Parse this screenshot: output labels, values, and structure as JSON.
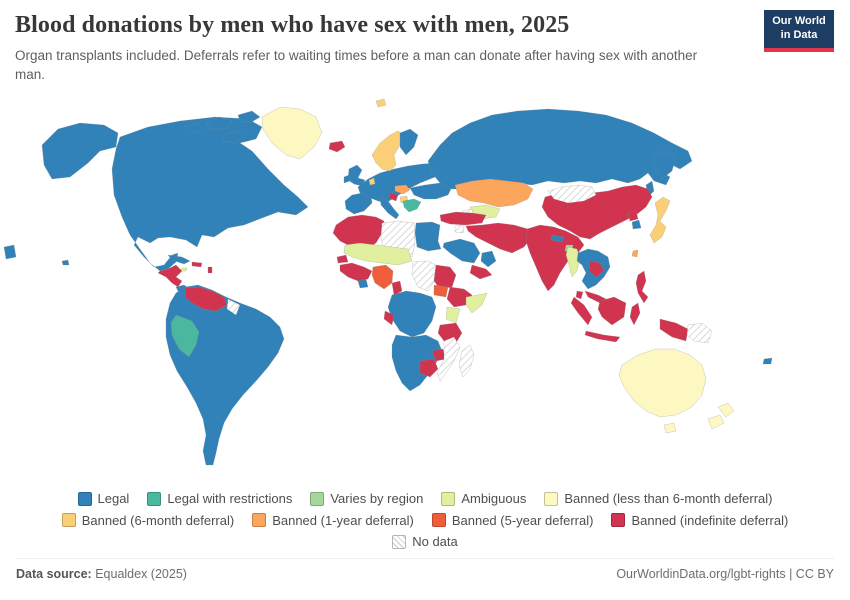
{
  "header": {
    "title": "Blood donations by men who have sex with men, 2025",
    "subtitle": "Organ transplants included. Deferrals refer to waiting times before a man can donate after having sex with another man."
  },
  "logo": {
    "line1": "Our World",
    "line2": "in Data",
    "bg_color": "#1d3d63",
    "accent_color": "#e0354d"
  },
  "chart_data": {
    "type": "choropleth-map",
    "title": "Blood donations by men who have sex with men, 2025",
    "legend_position": "bottom-center",
    "categories": [
      {
        "id": "legal",
        "label": "Legal",
        "color": "#3182b8",
        "row": 1
      },
      {
        "id": "legal-restrictions",
        "label": "Legal with restrictions",
        "color": "#4ab79f",
        "row": 1
      },
      {
        "id": "varies",
        "label": "Varies by region",
        "color": "#a4d89b",
        "row": 1
      },
      {
        "id": "ambiguous",
        "label": "Ambiguous",
        "color": "#e0f09e",
        "row": 1
      },
      {
        "id": "banned-lt6",
        "label": "Banned (less than 6-month deferral)",
        "color": "#fdf8c2",
        "row": 1
      },
      {
        "id": "banned-6mo",
        "label": "Banned (6-month deferral)",
        "color": "#fbcf78",
        "row": 2
      },
      {
        "id": "banned-1yr",
        "label": "Banned (1-year deferral)",
        "color": "#fba55d",
        "row": 2
      },
      {
        "id": "banned-5yr",
        "label": "Banned (5-year deferral)",
        "color": "#ef5e3a",
        "row": 2
      },
      {
        "id": "banned-indef",
        "label": "Banned (indefinite deferral)",
        "color": "#d0344f",
        "row": 2
      },
      {
        "id": "no-data",
        "label": "No data",
        "color": "#ffffff",
        "row": 3,
        "pattern": "hatch"
      }
    ],
    "regions": {
      "alaska": "legal",
      "north-america": "legal",
      "arctic-island-1": "legal",
      "arctic-island-2": "legal",
      "arctic-island-3": "legal",
      "arctic-island-4": "legal",
      "greenland": "banned-lt6",
      "iceland": "banned-indef",
      "cuba": "legal",
      "jamaica": "ambiguous",
      "hispaniola": "banned-indef",
      "lesser-antilles": "banned-indef",
      "central-america": "banned-indef",
      "panama": "legal",
      "south-america": "legal",
      "venezuela": "banned-indef",
      "guyana": "no-data",
      "peru": "legal-restrictions",
      "uk": "legal",
      "ireland": "legal",
      "iberia": "legal",
      "france-central-europe": "legal",
      "italy": "legal",
      "ukraine-east-europe": "legal",
      "scandinavia": "banned-6mo",
      "denmark": "banned-6mo",
      "finland": "legal",
      "svalbard": "banned-6mo",
      "austria-hungary": "banned-1yr",
      "serbia": "banned-6mo",
      "croatia-bosnia": "banned-indef",
      "greece-bulgaria": "legal-restrictions",
      "russia": "legal",
      "kamchatka": "legal",
      "sakhalin": "legal",
      "chukotka-wrap": "legal",
      "kazakhstan": "banned-1yr",
      "central-asia": "ambiguous",
      "turkmenistan": "no-data",
      "turkey": "banned-indef",
      "syria": "no-data",
      "iran-pakistan-region": "banned-indef",
      "yemen": "banned-indef",
      "saudi-arabia": "legal",
      "oman-uae": "legal",
      "india": "banned-indef",
      "nepal": "legal",
      "bangladesh": "varies",
      "sri-lanka": "banned-indef",
      "china": "banned-indef",
      "mongolia": "no-data",
      "north-korea": "banned-indef",
      "south-korea": "legal",
      "japan": "banned-6mo",
      "taiwan": "banned-1yr",
      "myanmar": "ambiguous",
      "thailand-vietnam": "legal",
      "laos-cambodia": "banned-indef",
      "malaysia": "banned-indef",
      "sumatra": "banned-indef",
      "java": "banned-indef",
      "borneo": "banned-indef",
      "sulawesi": "banned-indef",
      "west-new-guinea": "banned-indef",
      "papua-new-guinea": "no-data",
      "philippines": "banned-indef",
      "morocco-algeria": "banned-indef",
      "libya": "no-data",
      "egypt": "legal",
      "sahel": "ambiguous",
      "senegal": "banned-indef",
      "west-africa-coast": "banned-indef",
      "ghana": "legal",
      "nigeria": "banned-5yr",
      "cameroon": "banned-indef",
      "chad": "no-data",
      "sudan": "banned-indef",
      "south-sudan": "banned-5yr",
      "ethiopia": "banned-indef",
      "somalia": "ambiguous",
      "kenya": "ambiguous",
      "congo-basin": "legal",
      "gabon": "banned-indef",
      "tanzania": "banned-indef",
      "southern-africa": "legal",
      "botswana": "banned-indef",
      "zimbabwe": "banned-indef",
      "mozambique": "no-data",
      "madagascar": "no-data",
      "australia": "banned-lt6",
      "tasmania": "banned-lt6",
      "new-zealand-north": "banned-lt6",
      "new-zealand-south": "banned-lt6",
      "fiji": "legal",
      "hawaii": "legal"
    }
  },
  "footer": {
    "source_label": "Data source:",
    "source_value": " Equaldex (2025)",
    "right_text": "OurWorldinData.org/lgbt-rights | CC BY"
  }
}
